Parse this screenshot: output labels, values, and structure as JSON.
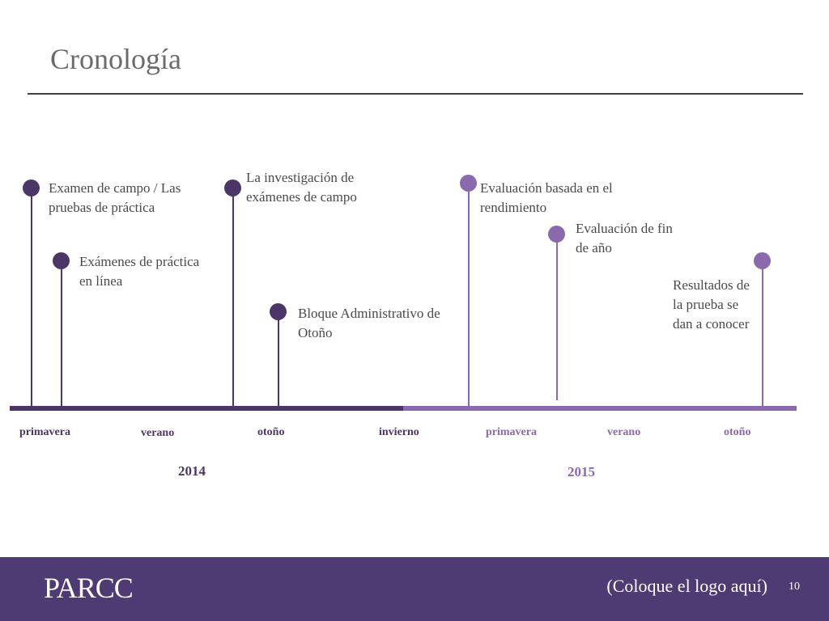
{
  "title": "Cronología",
  "events": [
    {
      "label": "Examen de campo / Las pruebas de práctica"
    },
    {
      "label": "Exámenes de práctica en línea"
    },
    {
      "label": "La investigación de exámenes de campo"
    },
    {
      "label": "Bloque Administrativo de Otoño"
    },
    {
      "label": "Evaluación basada en el rendimiento"
    },
    {
      "label": "Evaluación de fin de año"
    },
    {
      "label": "Resultados de la prueba se dan a conocer"
    }
  ],
  "seasons": [
    "primavera",
    "verano",
    "otoño",
    "invierno",
    "primavera",
    "verano",
    "otoño"
  ],
  "years": [
    "2014",
    "2015"
  ],
  "colors": {
    "dark": "#4b3667",
    "light": "#8a6aac",
    "footer": "#4f3b73"
  },
  "footer": {
    "logo": "PARCC",
    "placeholder": "(Coloque el logo aquí)",
    "page_number": "10"
  }
}
